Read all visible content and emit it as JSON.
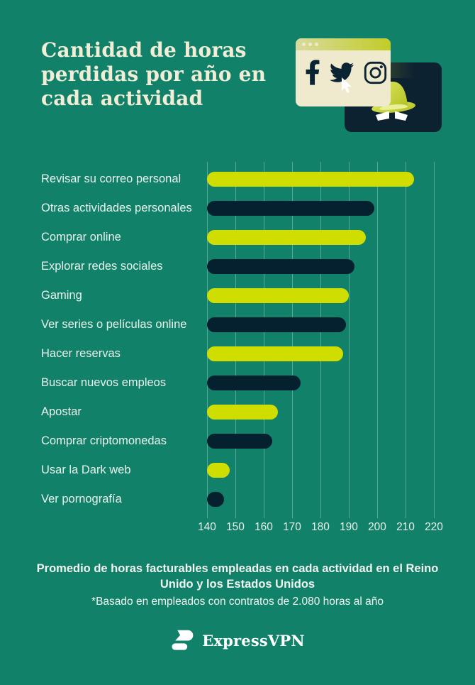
{
  "page": {
    "background_color": "#11816A"
  },
  "header": {
    "title": "Cantidad de horas perdidas por año en cada actividad",
    "illustration": {
      "description": "browser window with social icons and incognito spy window",
      "social_icons": [
        "facebook-icon",
        "twitter-icon",
        "instagram-icon"
      ],
      "cursor_icons": 2,
      "spy": "incognito-hat-and-eyes"
    }
  },
  "chart_data": {
    "type": "bar",
    "orientation": "horizontal",
    "title": "Cantidad de horas perdidas por año en cada actividad",
    "categories": [
      "Revisar su correo personal",
      "Otras actividades personales",
      "Comprar online",
      "Explorar redes sociales",
      "Gaming",
      "Ver series o películas online",
      "Hacer reservas",
      "Buscar nuevos empleos",
      "Apostar",
      "Comprar criptomonedas",
      "Usar la Dark web",
      "Ver pornografía"
    ],
    "values": [
      213,
      199,
      196,
      192,
      190,
      189,
      188,
      173,
      165,
      163,
      148,
      146
    ],
    "unit": "horas al año",
    "xlim": [
      140,
      220
    ],
    "x_ticks": [
      140,
      150,
      160,
      170,
      180,
      190,
      200,
      210,
      220
    ],
    "grid": true,
    "legend": false,
    "colors": {
      "bar_odd": "#CFDE00",
      "bar_even": "#05202E",
      "gridline": "rgba(255,255,255,0.30)",
      "label": "#EAF2EC"
    }
  },
  "footer": {
    "line1": "Promedio de horas facturables empleadas en cada actividad en el Reino Unido y los Estados Unidos",
    "line2": "*Basado en empleados con contratos de 2.080 horas al año"
  },
  "brand": {
    "name": "ExpressVPN"
  }
}
